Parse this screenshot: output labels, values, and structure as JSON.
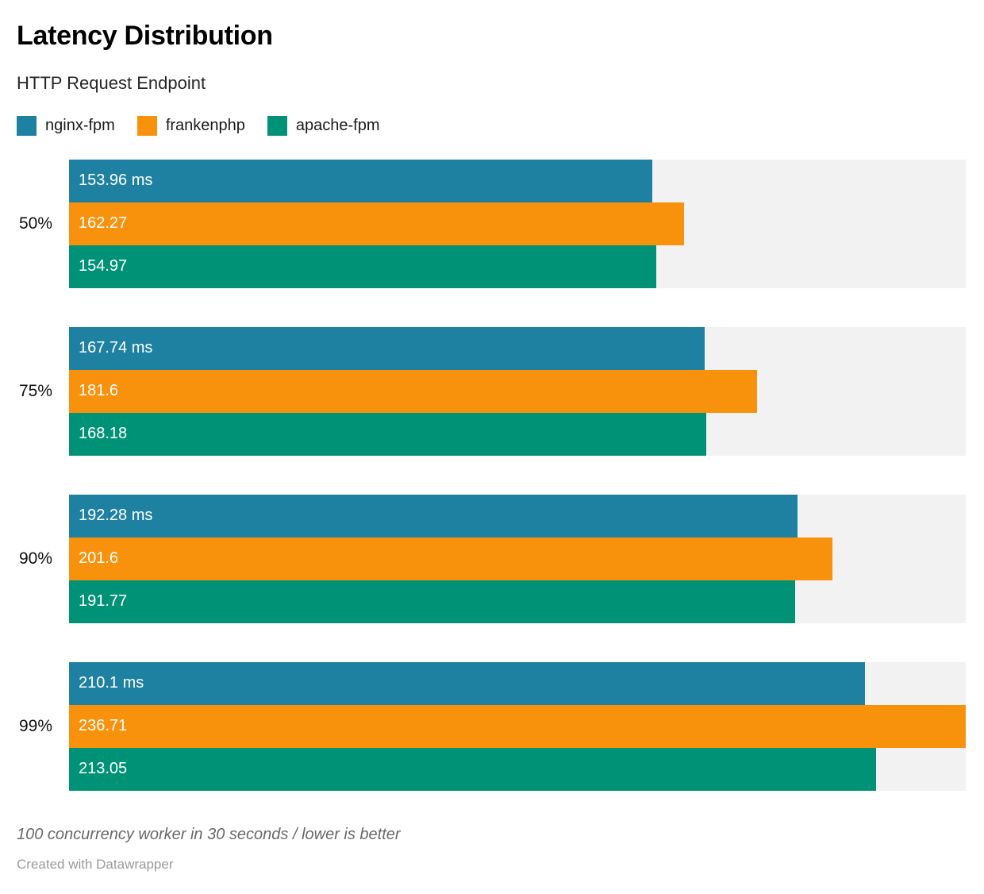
{
  "header": {
    "title": "Latency Distribution",
    "subtitle": "HTTP Request Endpoint"
  },
  "legend": [
    {
      "label": "nginx-fpm",
      "color": "#1f81a1"
    },
    {
      "label": "frankenphp",
      "color": "#f8920d"
    },
    {
      "label": "apache-fpm",
      "color": "#009276"
    }
  ],
  "chart_data": {
    "type": "bar",
    "orientation": "horizontal",
    "title": "Latency Distribution",
    "subtitle": "HTTP Request Endpoint",
    "categories": [
      "50%",
      "75%",
      "90%",
      "99%"
    ],
    "series": [
      {
        "name": "nginx-fpm",
        "color": "#1f81a1",
        "values": [
          153.96,
          167.74,
          192.28,
          210.1
        ],
        "labels": [
          "153.96 ms",
          "167.74 ms",
          "192.28 ms",
          "210.1 ms"
        ]
      },
      {
        "name": "frankenphp",
        "color": "#f8920d",
        "values": [
          162.27,
          181.6,
          201.6,
          236.71
        ],
        "labels": [
          "162.27",
          "181.6",
          "201.6",
          "236.71"
        ]
      },
      {
        "name": "apache-fpm",
        "color": "#009276",
        "values": [
          154.97,
          168.18,
          191.77,
          213.05
        ],
        "labels": [
          "154.97",
          "168.18",
          "191.77",
          "213.05"
        ]
      }
    ],
    "xlim": [
      0,
      236.71
    ],
    "unit": "ms",
    "value_labels_inside_bars": true,
    "track_color": "#f2f2f2",
    "grid": false,
    "legend_position": "top-left"
  },
  "footer": {
    "note": "100 concurrency worker in 30 seconds / lower is better",
    "credit": "Created with Datawrapper"
  }
}
